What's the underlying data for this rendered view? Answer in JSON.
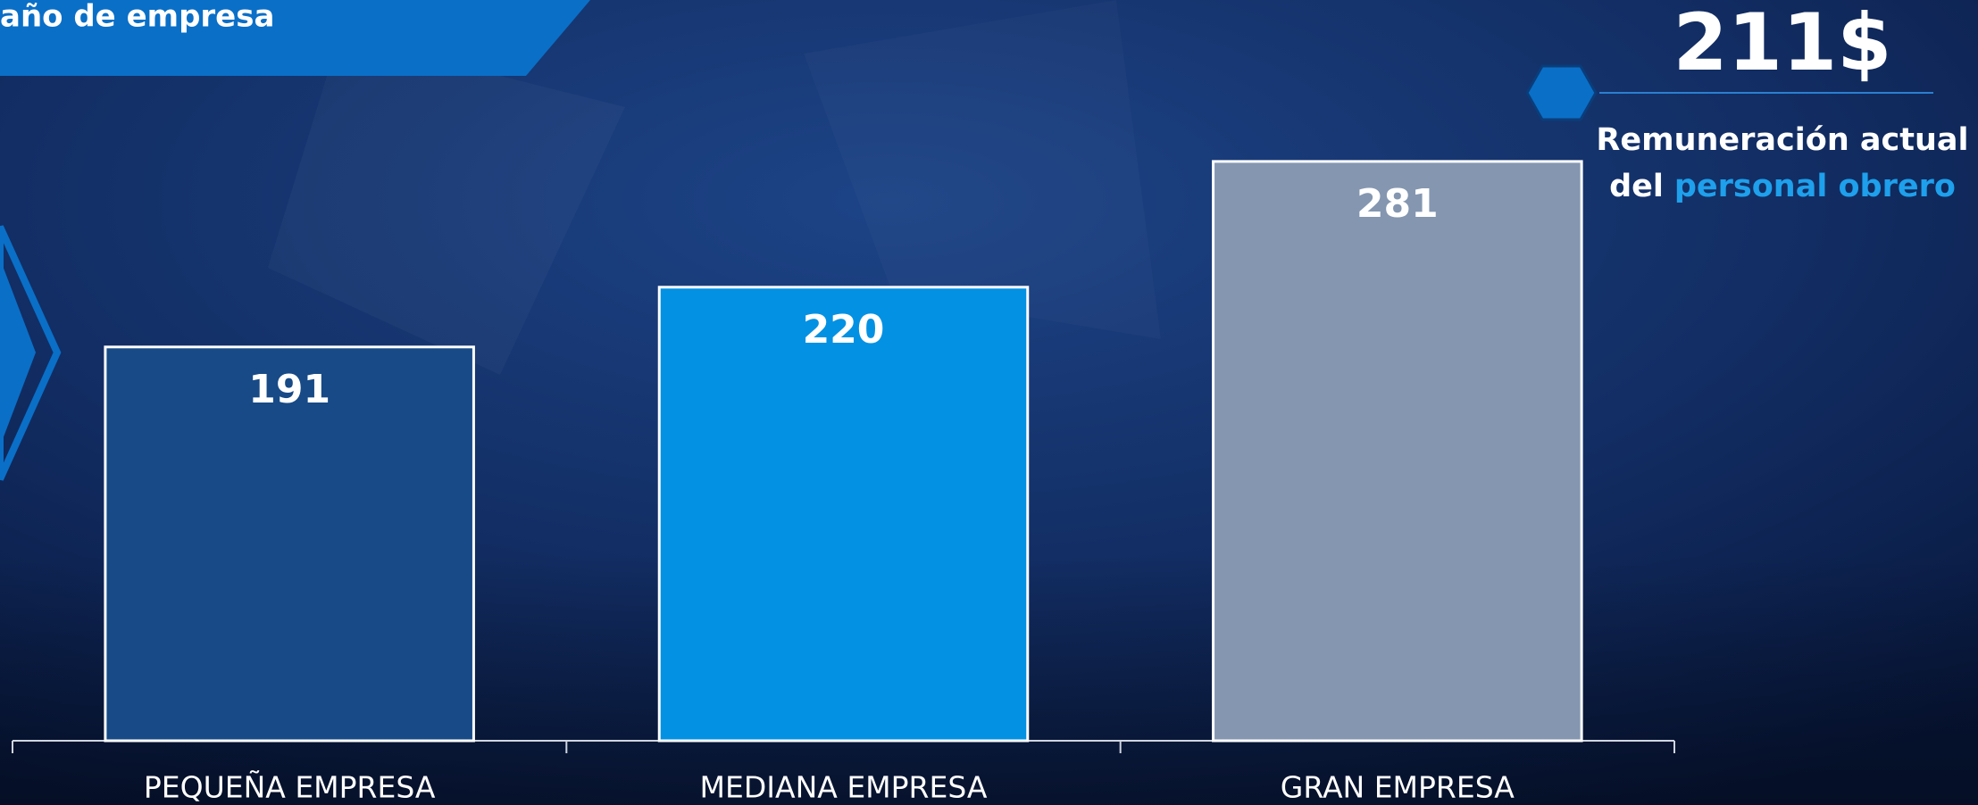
{
  "chart_data": {
    "type": "bar",
    "title": "año de empresa",
    "categories": [
      "PEQUEÑA EMPRESA",
      "MEDIANA EMPRESA",
      "GRAN EMPRESA"
    ],
    "values": [
      191,
      220,
      281
    ],
    "colors": [
      "#174a86",
      "#0391e3",
      "#8496b0"
    ],
    "ylim": [
      0,
      300
    ],
    "grid": false,
    "callout": {
      "amount": "211$",
      "line1": "Remuneración actual",
      "line2_prefix": "del",
      "line2_highlight": "personal obrero"
    }
  }
}
